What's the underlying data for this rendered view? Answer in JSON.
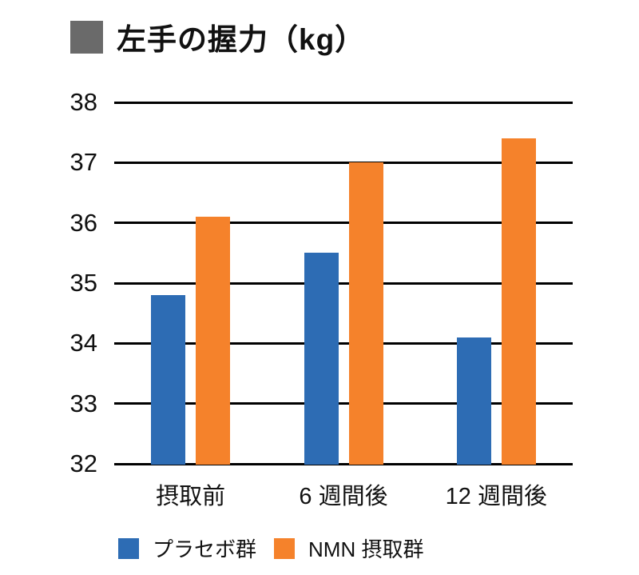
{
  "title": {
    "text": "左手の握力（kg）",
    "bullet_color": "#6A6A6A"
  },
  "chart_data": {
    "type": "bar",
    "categories": [
      "摂取前",
      "6 週間後",
      "12 週間後"
    ],
    "series": [
      {
        "name": "プラセボ群",
        "color": "#2D6CB4",
        "values": [
          34.8,
          35.5,
          34.1
        ]
      },
      {
        "name": "NMN 摂取群",
        "color": "#F5822B",
        "values": [
          36.1,
          37.0,
          37.4
        ]
      }
    ],
    "title": "左手の握力（kg）",
    "xlabel": "",
    "ylabel": "",
    "ylim": [
      32,
      38
    ],
    "yticks": [
      32,
      33,
      34,
      35,
      36,
      37,
      38
    ],
    "grid": true,
    "gridline_color": "#000000",
    "legend_position": "bottom"
  }
}
